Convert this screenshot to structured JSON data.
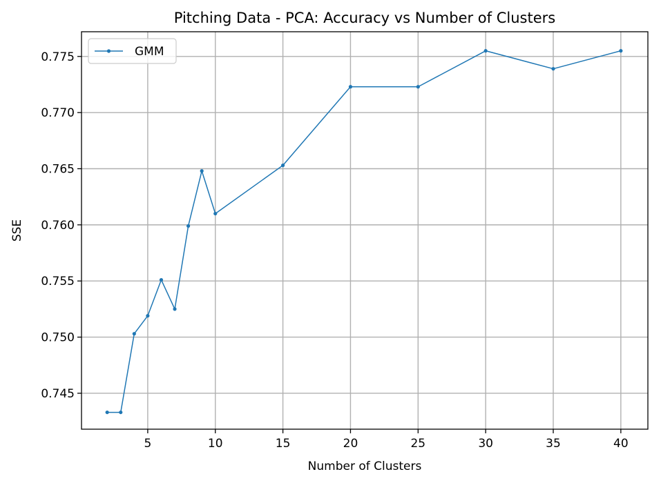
{
  "chart_data": {
    "type": "line",
    "title": "Pitching Data - PCA: Accuracy vs Number of Clusters",
    "xlabel": "Number of Clusters",
    "ylabel": "SSE",
    "xlim": [
      0.1,
      42.0
    ],
    "ylim": [
      0.7418,
      0.7772
    ],
    "x_ticks": [
      5,
      10,
      15,
      20,
      25,
      30,
      35,
      40
    ],
    "y_ticks": [
      0.745,
      0.75,
      0.755,
      0.76,
      0.765,
      0.77,
      0.775
    ],
    "y_tick_labels": [
      "0.745",
      "0.750",
      "0.755",
      "0.760",
      "0.765",
      "0.770",
      "0.775"
    ],
    "grid": true,
    "legend_position": "upper-left",
    "series": [
      {
        "name": "GMM",
        "color": "#1f77b4",
        "marker": "dot",
        "x": [
          2,
          3,
          4,
          5,
          6,
          7,
          8,
          9,
          10,
          15,
          20,
          25,
          30,
          35,
          40
        ],
        "y": [
          0.7433,
          0.7433,
          0.7503,
          0.7519,
          0.7551,
          0.7525,
          0.7599,
          0.7648,
          0.761,
          0.7653,
          0.7723,
          0.7723,
          0.7755,
          0.7739,
          0.7755
        ]
      }
    ]
  }
}
